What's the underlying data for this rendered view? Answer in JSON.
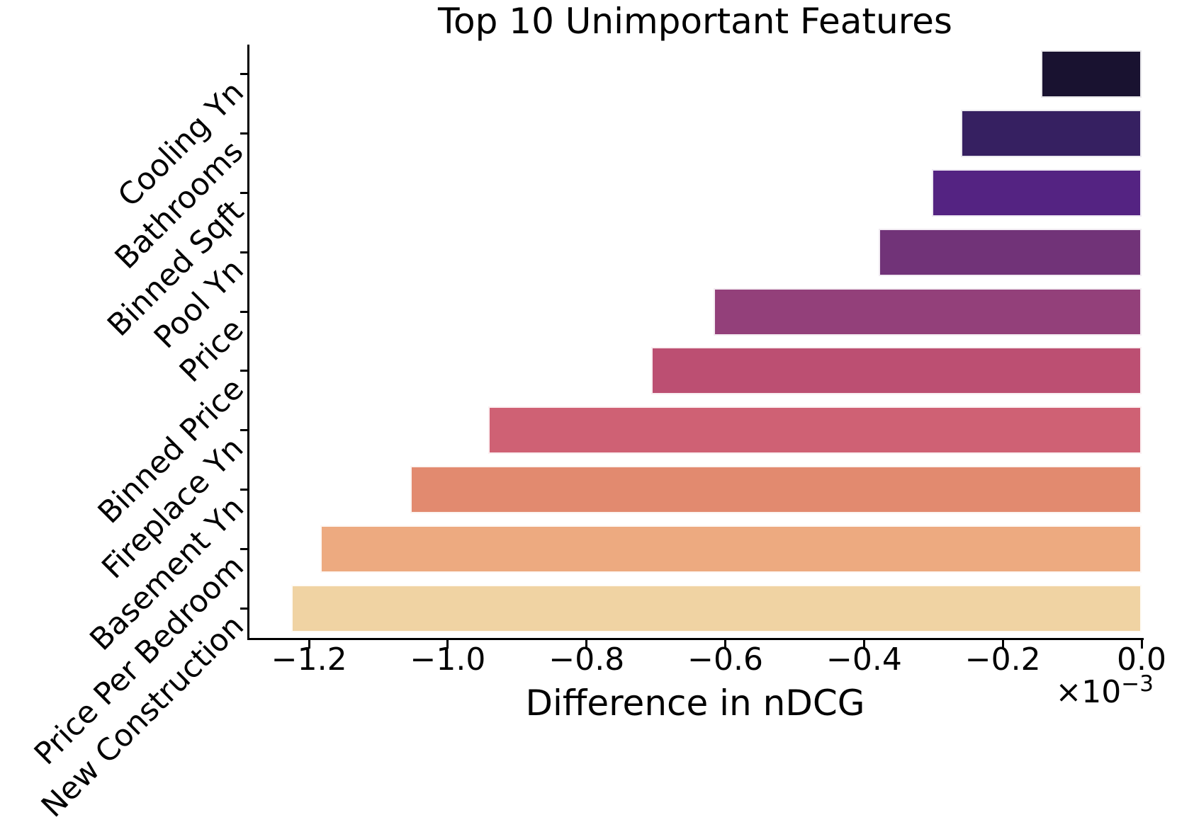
{
  "chart_data": {
    "type": "bar",
    "orientation": "horizontal",
    "title": "Top 10 Unimportant Features",
    "xlabel": "Difference in nDCG",
    "ylabel": "",
    "value_unit_multiplier": 0.001,
    "offset_text": {
      "mantissa": "×10",
      "exponent": "−3"
    },
    "categories": [
      "Cooling Yn",
      "Bathrooms",
      "Binned Sqft",
      "Pool Yn",
      "Price",
      "Binned Price",
      "Fireplace Yn",
      "Basement Yn",
      "Price Per Bedroom",
      "New Construction"
    ],
    "values": [
      -0.145,
      -0.26,
      -0.302,
      -0.379,
      -0.617,
      -0.707,
      -0.942,
      -1.054,
      -1.184,
      -1.226
    ],
    "bar_colors": [
      "#191230",
      "#362061",
      "#542382",
      "#713378",
      "#93407a",
      "#bc4f72",
      "#cf6174",
      "#e28a6f",
      "#edaa80",
      "#f0d3a3"
    ],
    "xlim": [
      -1.287,
      0
    ],
    "xticks": [
      -1.2,
      -1.0,
      -0.8,
      -0.6,
      -0.4,
      -0.2,
      0.0
    ],
    "xtick_labels": [
      "−1.2",
      "−1.0",
      "−0.8",
      "−0.6",
      "−0.4",
      "−0.2",
      "0.0"
    ],
    "grid": false,
    "legend": null,
    "bar_edge_color": "#ffffff"
  }
}
